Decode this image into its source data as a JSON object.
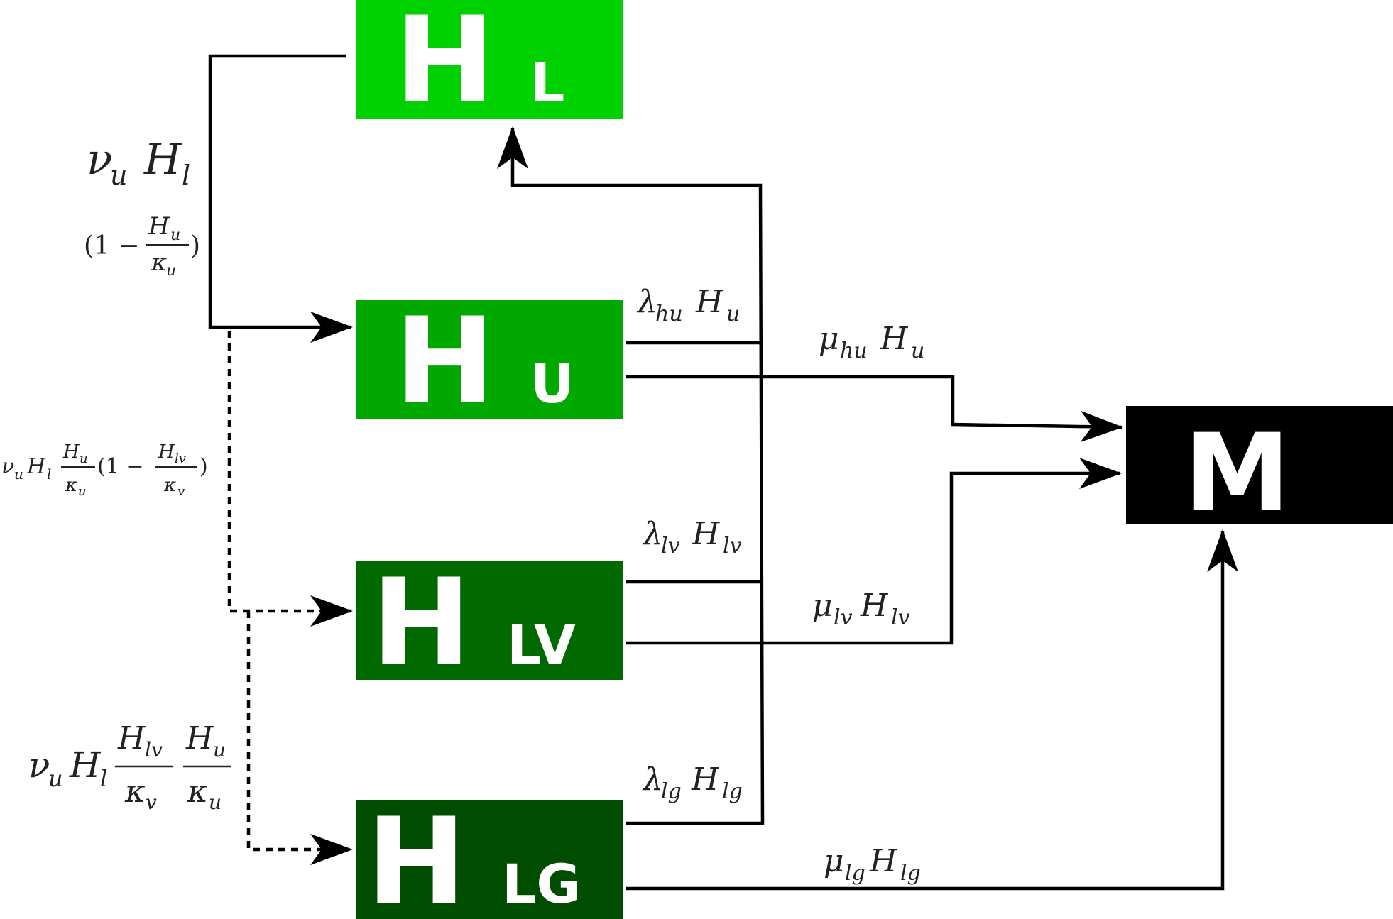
{
  "colors": {
    "hl": "#00d100",
    "hu": "#00a800",
    "hlv": "#006a00",
    "hlg": "#004c00",
    "m": "#000000",
    "line": "#000000"
  },
  "boxes": {
    "hl": {
      "main": "H",
      "sub": "L"
    },
    "hu": {
      "main": "H",
      "sub": "U"
    },
    "hlv": {
      "main": "H",
      "sub": "LV"
    },
    "hlg": {
      "main": "H",
      "sub": "LG"
    },
    "m": {
      "main": "M"
    }
  },
  "labels": {
    "nu_hl": {
      "nu": "ν",
      "nu_sub": "u",
      "h": "H",
      "h_sub": "l"
    },
    "factor1": {
      "open": "(1 −",
      "num": "H",
      "num_sub": "u",
      "den": "κ",
      "den_sub": "u",
      "close": ")"
    },
    "nu_hl_hu": {
      "nu": "ν",
      "nu_sub": "u",
      "h": "H",
      "h_sub": "l",
      "f1_num": "H",
      "f1_num_sub": "u",
      "f1_den": "κ",
      "f1_den_sub": "u",
      "open": "(1 −",
      "f2_num": "H",
      "f2_num_sub": "lv",
      "f2_den": "κ",
      "f2_den_sub": "v",
      "close": ")"
    },
    "nu_hl_hlv_hu": {
      "nu": "ν",
      "nu_sub": "u",
      "h": "H",
      "h_sub": "l",
      "f1_num": "H",
      "f1_num_sub": "lv",
      "f1_den": "κ",
      "f1_den_sub": "v",
      "f2_num": "H",
      "f2_num_sub": "u",
      "f2_den": "κ",
      "f2_den_sub": "u"
    },
    "lambda_hu": {
      "sym": "λ",
      "sym_sub": "hu",
      "h": "H",
      "h_sub": "u"
    },
    "lambda_lv": {
      "sym": "λ",
      "sym_sub": "lv",
      "h": "H",
      "h_sub": "lv"
    },
    "lambda_lg": {
      "sym": "λ",
      "sym_sub": "lg",
      "h": "H",
      "h_sub": "lg"
    },
    "mu_hu": {
      "sym": "μ",
      "sym_sub": "hu",
      "h": "H",
      "h_sub": "u"
    },
    "mu_lv": {
      "sym": "μ",
      "sym_sub": "lv",
      "h": "H",
      "h_sub": "lv"
    },
    "mu_lg": {
      "sym": "μ",
      "sym_sub": "lg",
      "h": "H",
      "h_sub": "lg"
    }
  }
}
